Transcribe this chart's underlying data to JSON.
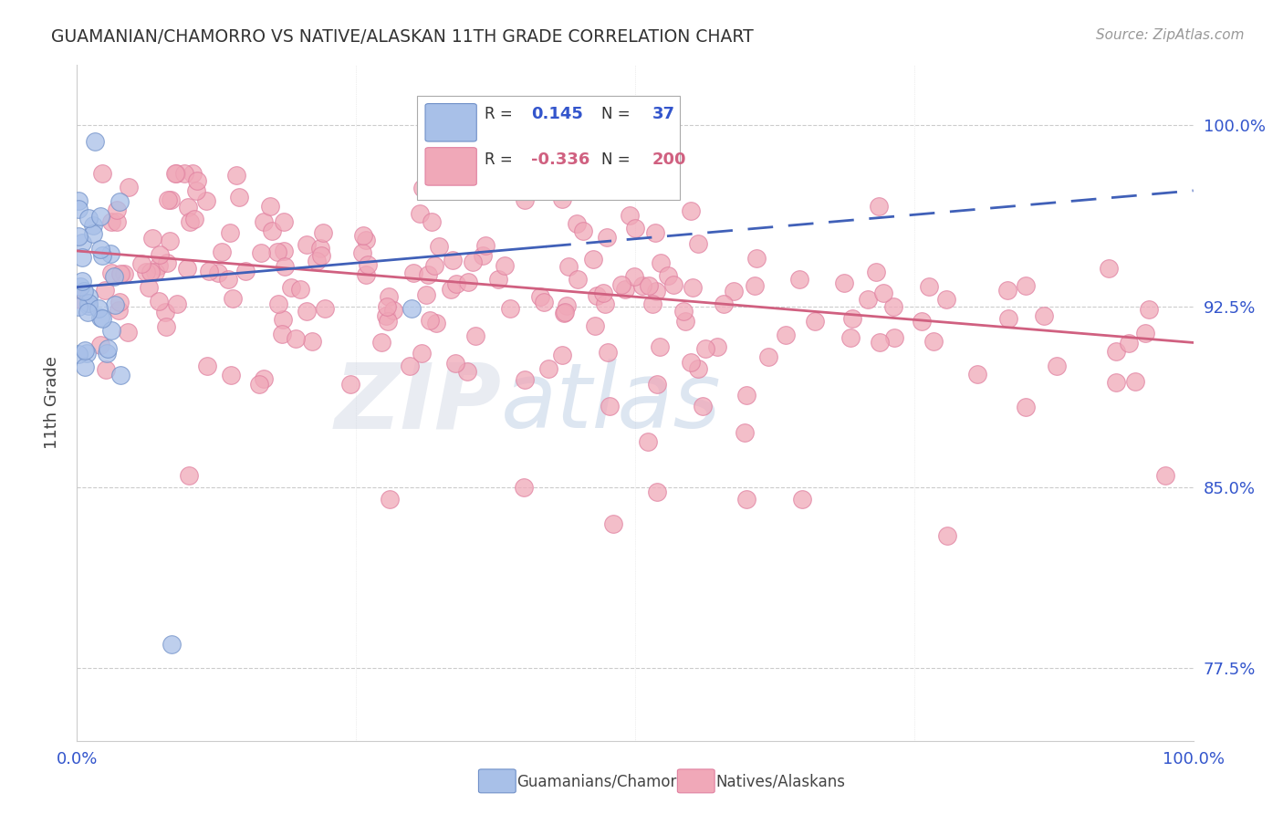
{
  "title": "GUAMANIAN/CHAMORRO VS NATIVE/ALASKAN 11TH GRADE CORRELATION CHART",
  "source": "Source: ZipAtlas.com",
  "ylabel": "11th Grade",
  "ytick_labels": [
    "77.5%",
    "85.0%",
    "92.5%",
    "100.0%"
  ],
  "ytick_values": [
    0.775,
    0.85,
    0.925,
    1.0
  ],
  "xlim": [
    0.0,
    1.0
  ],
  "ylim": [
    0.745,
    1.025
  ],
  "blue_R": 0.145,
  "blue_N": 37,
  "pink_R": -0.336,
  "pink_N": 200,
  "blue_color": "#a8c0e8",
  "pink_color": "#f0a8b8",
  "blue_edge_color": "#7090c8",
  "pink_edge_color": "#e080a0",
  "blue_line_color": "#4060b8",
  "pink_line_color": "#d06080",
  "legend_label_blue": "Guamanians/Chamorros",
  "legend_label_pink": "Natives/Alaskans",
  "blue_line_solid_end": 0.42,
  "blue_line_x0": 0.0,
  "blue_line_y0": 0.933,
  "blue_line_x1": 1.0,
  "blue_line_y1": 0.973,
  "pink_line_x0": 0.0,
  "pink_line_y0": 0.948,
  "pink_line_x1": 1.0,
  "pink_line_y1": 0.91
}
